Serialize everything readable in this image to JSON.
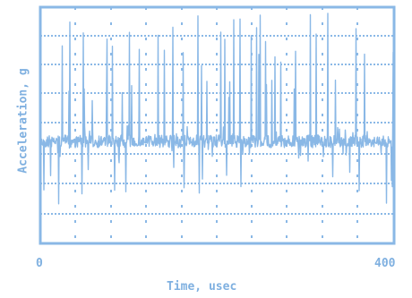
{
  "chart_data": {
    "type": "line",
    "title": "",
    "xlabel": "Time, usec",
    "ylabel": "Acceleration, g",
    "xlim": [
      0,
      400
    ],
    "x_tick_labels": [
      "0",
      "400"
    ],
    "grid": true,
    "series": [
      {
        "values_description_note": "",
        "color": "#8ab8e6"
      }
    ]
  },
  "colors": {
    "trace": "#8ab8e6",
    "axes": "#8ab8e6",
    "grid": "#8ab8e6",
    "text": "#7fb0e0",
    "background": "#ffffff"
  }
}
